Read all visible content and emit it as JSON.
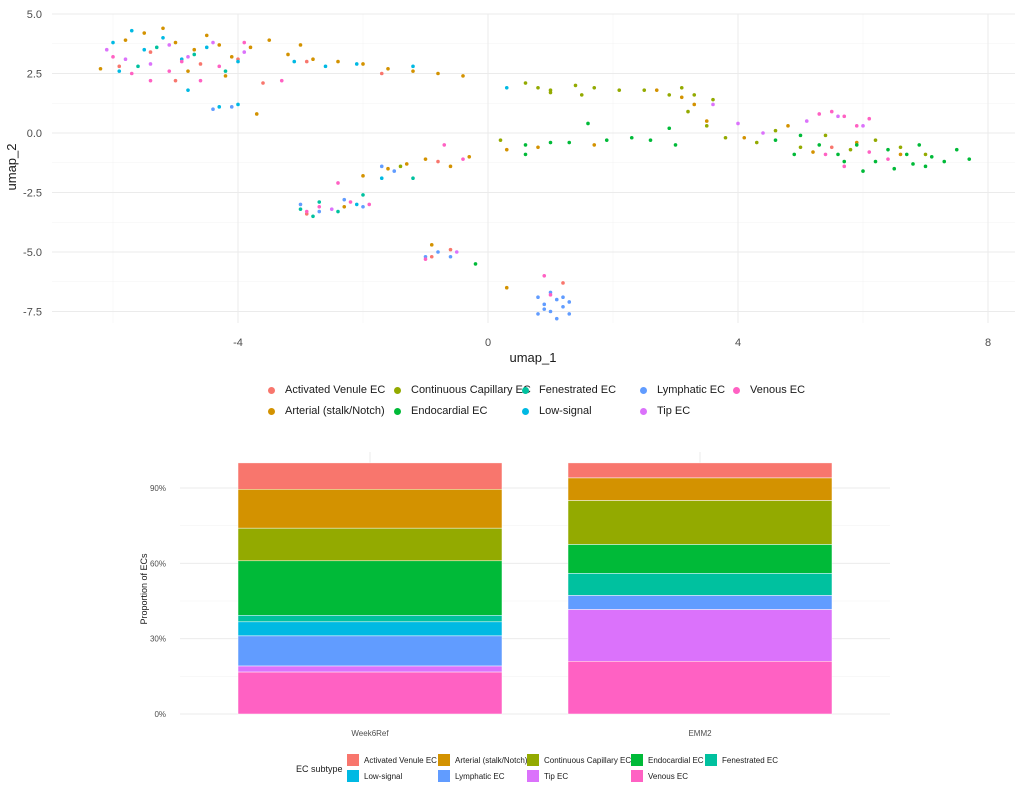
{
  "chart_data": [
    {
      "type": "scatter",
      "title": "",
      "xlabel": "umap_1",
      "ylabel": "umap_2",
      "xlim": [
        -6.5,
        8.5
      ],
      "ylim": [
        -8.3,
        5.0
      ],
      "x_ticks": [
        -4,
        0,
        4,
        8
      ],
      "x_tick_labels": [
        "-4",
        "0",
        "4",
        "8"
      ],
      "y_ticks": [
        5.0,
        2.5,
        0.0,
        -2.5,
        -5.0,
        -7.5
      ],
      "y_tick_labels": [
        "5.0",
        "2.5",
        "0.0",
        "-2.5",
        "-5.0",
        "-7.5"
      ],
      "grid": true,
      "legend_position": "bottom",
      "series": [
        {
          "name": "Activated Venule EC",
          "color": "#F8766D",
          "points": [
            [
              -5.9,
              2.8
            ],
            [
              -5.4,
              3.4
            ],
            [
              -4.6,
              2.9
            ],
            [
              -4.0,
              3.1
            ],
            [
              -3.6,
              2.1
            ],
            [
              -2.9,
              3.0
            ],
            [
              -1.7,
              2.5
            ],
            [
              -0.9,
              -5.2
            ],
            [
              -0.6,
              -4.9
            ],
            [
              -2.9,
              -3.4
            ],
            [
              -0.8,
              -1.2
            ],
            [
              5.5,
              -0.6
            ],
            [
              1.2,
              -6.3
            ],
            [
              -5.0,
              2.2
            ]
          ]
        },
        {
          "name": "Arterial (stalk/Notch)",
          "color": "#D39200",
          "points": [
            [
              -6.2,
              2.7
            ],
            [
              -5.8,
              3.9
            ],
            [
              -5.5,
              4.2
            ],
            [
              -5.2,
              4.4
            ],
            [
              -5.0,
              3.8
            ],
            [
              -4.7,
              3.5
            ],
            [
              -4.5,
              4.1
            ],
            [
              -4.3,
              3.7
            ],
            [
              -4.1,
              3.2
            ],
            [
              -3.8,
              3.6
            ],
            [
              -3.5,
              3.9
            ],
            [
              -3.2,
              3.3
            ],
            [
              -3.0,
              3.7
            ],
            [
              -2.8,
              3.1
            ],
            [
              -2.4,
              3.0
            ],
            [
              -2.0,
              2.9
            ],
            [
              -1.6,
              2.7
            ],
            [
              -1.2,
              2.6
            ],
            [
              -0.8,
              2.5
            ],
            [
              -0.4,
              2.4
            ],
            [
              -3.7,
              0.8
            ],
            [
              -2.0,
              -1.8
            ],
            [
              -1.6,
              -1.5
            ],
            [
              -1.3,
              -1.3
            ],
            [
              -1.0,
              -1.1
            ],
            [
              -0.6,
              -1.4
            ],
            [
              -0.3,
              -1.0
            ],
            [
              0.3,
              -0.7
            ],
            [
              0.8,
              -0.6
            ],
            [
              1.7,
              -0.5
            ],
            [
              2.7,
              1.8
            ],
            [
              3.1,
              1.5
            ],
            [
              3.3,
              1.2
            ],
            [
              3.5,
              0.5
            ],
            [
              4.1,
              -0.2
            ],
            [
              4.8,
              0.3
            ],
            [
              5.2,
              -0.8
            ],
            [
              5.9,
              -0.4
            ],
            [
              6.6,
              -0.9
            ],
            [
              -2.3,
              -3.1
            ],
            [
              -0.9,
              -4.7
            ],
            [
              0.3,
              -6.5
            ],
            [
              -4.8,
              2.6
            ],
            [
              -4.2,
              2.4
            ]
          ]
        },
        {
          "name": "Continuous Capillary EC",
          "color": "#93AA00",
          "points": [
            [
              0.6,
              2.1
            ],
            [
              0.8,
              1.9
            ],
            [
              1.0,
              1.8
            ],
            [
              1.4,
              2.0
            ],
            [
              1.7,
              1.9
            ],
            [
              2.1,
              1.8
            ],
            [
              2.5,
              1.8
            ],
            [
              2.9,
              1.6
            ],
            [
              3.1,
              1.9
            ],
            [
              3.3,
              1.6
            ],
            [
              3.6,
              1.4
            ],
            [
              3.2,
              0.9
            ],
            [
              3.5,
              0.3
            ],
            [
              3.8,
              -0.2
            ],
            [
              4.3,
              -0.4
            ],
            [
              4.6,
              0.1
            ],
            [
              5.0,
              -0.6
            ],
            [
              5.4,
              -0.1
            ],
            [
              5.8,
              -0.7
            ],
            [
              6.2,
              -0.3
            ],
            [
              6.6,
              -0.6
            ],
            [
              7.0,
              -0.9
            ],
            [
              1.0,
              1.7
            ],
            [
              1.5,
              1.6
            ],
            [
              -1.4,
              -1.4
            ],
            [
              0.2,
              -0.3
            ]
          ]
        },
        {
          "name": "Endocardial EC",
          "color": "#00BA38",
          "points": [
            [
              0.6,
              -0.5
            ],
            [
              1.0,
              -0.4
            ],
            [
              1.6,
              0.4
            ],
            [
              1.9,
              -0.3
            ],
            [
              2.3,
              -0.2
            ],
            [
              2.6,
              -0.3
            ],
            [
              2.9,
              0.2
            ],
            [
              3.0,
              -0.5
            ],
            [
              4.6,
              -0.3
            ],
            [
              5.0,
              -0.1
            ],
            [
              5.3,
              -0.5
            ],
            [
              5.6,
              -0.9
            ],
            [
              5.9,
              -0.5
            ],
            [
              6.2,
              -1.2
            ],
            [
              6.4,
              -0.7
            ],
            [
              6.7,
              -0.9
            ],
            [
              6.9,
              -0.5
            ],
            [
              7.1,
              -1.0
            ],
            [
              7.3,
              -1.2
            ],
            [
              7.5,
              -0.7
            ],
            [
              7.7,
              -1.1
            ],
            [
              6.0,
              -1.6
            ],
            [
              6.5,
              -1.5
            ],
            [
              6.8,
              -1.3
            ],
            [
              7.0,
              -1.4
            ],
            [
              5.7,
              -1.2
            ],
            [
              0.6,
              -0.9
            ],
            [
              1.3,
              -0.4
            ],
            [
              -0.2,
              -5.5
            ],
            [
              4.9,
              -0.9
            ]
          ]
        },
        {
          "name": "Fenestrated EC",
          "color": "#00C19F",
          "points": [
            [
              -3.0,
              -3.2
            ],
            [
              -2.7,
              -2.9
            ],
            [
              -2.4,
              -3.3
            ],
            [
              -2.0,
              -2.6
            ],
            [
              -5.6,
              2.8
            ],
            [
              -5.3,
              3.6
            ],
            [
              -4.7,
              3.3
            ],
            [
              -4.2,
              2.6
            ],
            [
              -1.2,
              -1.9
            ],
            [
              -2.8,
              -3.5
            ]
          ]
        },
        {
          "name": "Low-signal",
          "color": "#00B9E3",
          "points": [
            [
              -6.0,
              3.8
            ],
            [
              -5.7,
              4.3
            ],
            [
              -5.5,
              3.5
            ],
            [
              -5.2,
              4.0
            ],
            [
              -4.9,
              3.1
            ],
            [
              -4.5,
              3.6
            ],
            [
              -4.0,
              3.0
            ],
            [
              -4.3,
              1.1
            ],
            [
              -4.0,
              1.2
            ],
            [
              -3.1,
              3.0
            ],
            [
              -2.6,
              2.8
            ],
            [
              -2.1,
              2.9
            ],
            [
              -1.2,
              2.8
            ],
            [
              0.3,
              1.9
            ],
            [
              -1.7,
              -1.9
            ],
            [
              -2.1,
              -3.0
            ],
            [
              -5.9,
              2.6
            ],
            [
              -4.8,
              1.8
            ]
          ]
        },
        {
          "name": "Lymphatic EC",
          "color": "#619CFF",
          "points": [
            [
              0.8,
              -6.9
            ],
            [
              0.9,
              -7.2
            ],
            [
              1.0,
              -7.5
            ],
            [
              1.1,
              -7.0
            ],
            [
              1.2,
              -7.3
            ],
            [
              1.3,
              -7.6
            ],
            [
              1.1,
              -7.8
            ],
            [
              0.9,
              -7.4
            ],
            [
              1.2,
              -6.9
            ],
            [
              1.3,
              -7.1
            ],
            [
              1.0,
              -6.7
            ],
            [
              0.8,
              -7.6
            ],
            [
              -1.0,
              -5.2
            ],
            [
              -0.8,
              -5.0
            ],
            [
              -0.6,
              -5.2
            ],
            [
              -3.0,
              -3.0
            ],
            [
              -2.7,
              -3.3
            ],
            [
              -2.3,
              -2.8
            ],
            [
              -2.0,
              -3.1
            ],
            [
              -1.7,
              -1.4
            ],
            [
              -1.5,
              -1.6
            ],
            [
              -4.4,
              1.0
            ],
            [
              -4.1,
              1.1
            ]
          ]
        },
        {
          "name": "Tip EC",
          "color": "#DB72FB",
          "points": [
            [
              -6.1,
              3.5
            ],
            [
              -5.8,
              3.1
            ],
            [
              -5.4,
              2.9
            ],
            [
              -5.1,
              3.7
            ],
            [
              -4.8,
              3.2
            ],
            [
              -4.4,
              3.8
            ],
            [
              -3.9,
              3.4
            ],
            [
              3.6,
              1.2
            ],
            [
              4.0,
              0.4
            ],
            [
              4.4,
              0.0
            ],
            [
              5.1,
              0.5
            ],
            [
              5.6,
              0.7
            ],
            [
              6.0,
              0.3
            ],
            [
              -2.5,
              -3.2
            ],
            [
              -0.5,
              -5.0
            ]
          ]
        },
        {
          "name": "Venous EC",
          "color": "#FF61C3",
          "points": [
            [
              -6.0,
              3.2
            ],
            [
              -5.7,
              2.5
            ],
            [
              -5.4,
              2.2
            ],
            [
              -5.1,
              2.6
            ],
            [
              -4.9,
              3.0
            ],
            [
              -4.6,
              2.2
            ],
            [
              -4.3,
              2.8
            ],
            [
              -3.9,
              3.8
            ],
            [
              -3.3,
              2.2
            ],
            [
              -2.9,
              -3.3
            ],
            [
              -2.7,
              -3.1
            ],
            [
              -2.4,
              -2.1
            ],
            [
              -2.2,
              -2.9
            ],
            [
              -1.9,
              -3.0
            ],
            [
              -0.7,
              -0.5
            ],
            [
              -0.4,
              -1.1
            ],
            [
              5.3,
              0.8
            ],
            [
              5.5,
              0.9
            ],
            [
              5.7,
              0.7
            ],
            [
              5.9,
              0.3
            ],
            [
              6.1,
              0.6
            ],
            [
              5.4,
              -0.9
            ],
            [
              5.7,
              -1.4
            ],
            [
              6.1,
              -0.8
            ],
            [
              6.4,
              -1.1
            ],
            [
              1.0,
              -6.8
            ],
            [
              0.9,
              -6.0
            ],
            [
              -1.0,
              -5.3
            ]
          ]
        }
      ]
    },
    {
      "type": "bar",
      "stacked": true,
      "title": "",
      "xlabel": "",
      "ylabel": "Proportion of ECs",
      "ylim": [
        0,
        100
      ],
      "y_ticks": [
        0,
        30,
        60,
        90
      ],
      "y_tick_labels": [
        "0%",
        "30%",
        "60%",
        "90%"
      ],
      "grid": true,
      "categories": [
        "Week6Ref",
        "EMM2"
      ],
      "legend_title": "EC subtype",
      "legend_position": "bottom",
      "series": [
        {
          "name": "Activated Venule EC",
          "color": "#F8766D",
          "values": [
            10.5,
            6.0
          ]
        },
        {
          "name": "Arterial (stalk/Notch)",
          "color": "#D39200",
          "values": [
            15.5,
            9.0
          ]
        },
        {
          "name": "Continuous Capillary EC",
          "color": "#93AA00",
          "values": [
            13.0,
            17.5
          ]
        },
        {
          "name": "Endocardial EC",
          "color": "#00BA38",
          "values": [
            21.7,
            11.5
          ]
        },
        {
          "name": "Fenestrated EC",
          "color": "#00C19F",
          "values": [
            2.6,
            8.8
          ]
        },
        {
          "name": "Low-signal",
          "color": "#00B9E3",
          "values": [
            5.6,
            0.0
          ]
        },
        {
          "name": "Lymphatic EC",
          "color": "#619CFF",
          "values": [
            12.0,
            5.6
          ]
        },
        {
          "name": "Tip EC",
          "color": "#DB72FB",
          "values": [
            2.4,
            20.6
          ]
        },
        {
          "name": "Venous EC",
          "color": "#FF61C3",
          "values": [
            16.7,
            21.0
          ]
        }
      ]
    }
  ],
  "umap_legend": [
    {
      "label": "Activated Venule EC",
      "color": "#F8766D"
    },
    {
      "label": "Continuous Capillary EC",
      "color": "#93AA00"
    },
    {
      "label": "Fenestrated EC",
      "color": "#00C19F"
    },
    {
      "label": "Lymphatic EC",
      "color": "#619CFF"
    },
    {
      "label": "Venous EC",
      "color": "#FF61C3"
    },
    {
      "label": "Arterial (stalk/Notch)",
      "color": "#D39200"
    },
    {
      "label": "Endocardial EC",
      "color": "#00BA38"
    },
    {
      "label": "Low-signal",
      "color": "#00B9E3"
    },
    {
      "label": "Tip EC",
      "color": "#DB72FB"
    }
  ],
  "bar_legend": [
    {
      "label": "Activated Venule EC",
      "color": "#F8766D"
    },
    {
      "label": "Arterial (stalk/Notch)",
      "color": "#D39200"
    },
    {
      "label": "Continuous Capillary EC",
      "color": "#93AA00"
    },
    {
      "label": "Endocardial EC",
      "color": "#00BA38"
    },
    {
      "label": "Fenestrated EC",
      "color": "#00C19F"
    },
    {
      "label": "Low-signal",
      "color": "#00B9E3"
    },
    {
      "label": "Lymphatic EC",
      "color": "#619CFF"
    },
    {
      "label": "Tip EC",
      "color": "#DB72FB"
    },
    {
      "label": "Venous EC",
      "color": "#FF61C3"
    }
  ]
}
